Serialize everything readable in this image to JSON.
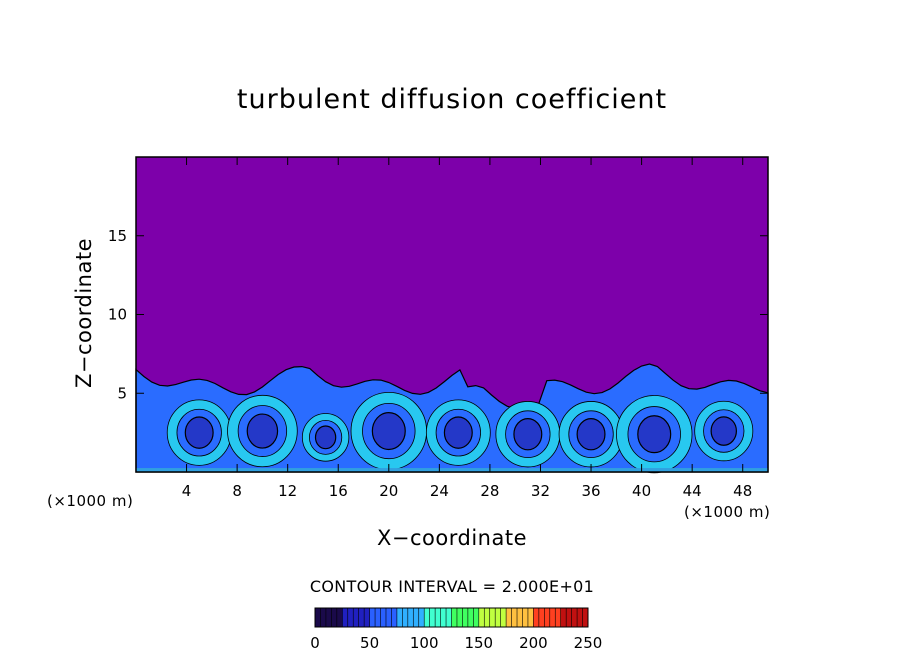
{
  "chart_data": {
    "type": "heatmap",
    "title": "turbulent diffusion coefficient",
    "xlabel": "X−coordinate",
    "ylabel": "Z−coordinate",
    "x_unit_left": "(×1000 m)",
    "x_unit_right": "(×1000 m)",
    "xlim": [
      0,
      50
    ],
    "ylim": [
      0,
      20
    ],
    "x_ticks": [
      4,
      8,
      12,
      16,
      20,
      24,
      28,
      32,
      36,
      40,
      44,
      48
    ],
    "y_ticks": [
      5,
      10,
      15
    ],
    "contour_interval_label": "CONTOUR INTERVAL = 2.000E+01",
    "colorbar": {
      "min": 0,
      "max": 250,
      "tick_values": [
        0,
        50,
        100,
        150,
        200,
        250
      ],
      "colors": [
        "#1a0a4a",
        "#2020c0",
        "#2a60ff",
        "#30b0ff",
        "#40ffd0",
        "#40ff60",
        "#c0ff40",
        "#ffc040",
        "#ff4020",
        "#c01010"
      ]
    },
    "background_color": "#7d00aa",
    "boundary_layer_top_z": 6.5
  }
}
